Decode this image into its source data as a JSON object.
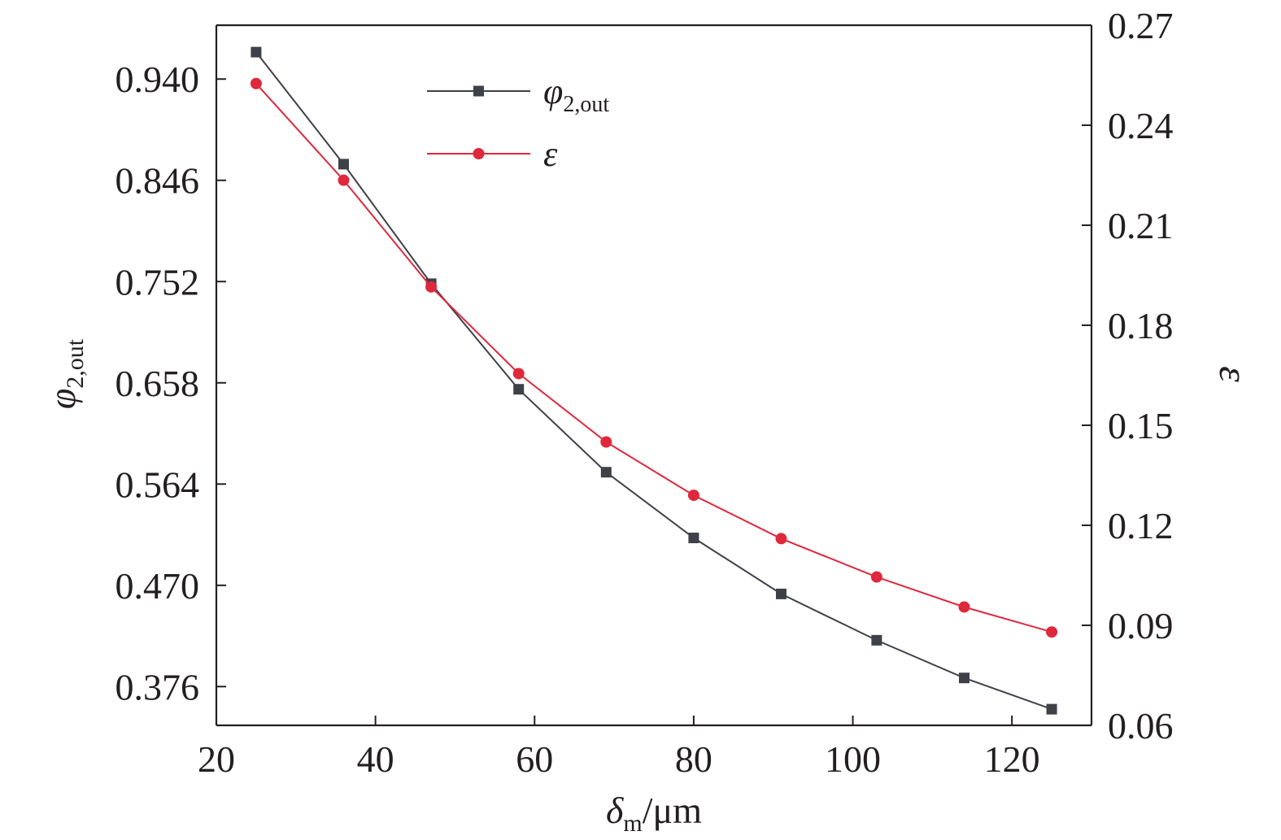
{
  "chart_data": {
    "type": "line",
    "x": [
      25,
      36,
      47,
      58,
      69,
      80,
      91,
      103,
      114,
      125
    ],
    "series": [
      {
        "name": "φ2,out",
        "axis": "left",
        "marker": "square",
        "color": "#3f4149",
        "values": [
          0.965,
          0.861,
          0.75,
          0.652,
          0.575,
          0.514,
          0.462,
          0.419,
          0.384,
          0.355
        ]
      },
      {
        "name": "ε",
        "axis": "right",
        "marker": "circle",
        "color": "#e0283c",
        "values": [
          0.2525,
          0.2235,
          0.1915,
          0.1655,
          0.145,
          0.129,
          0.116,
          0.1045,
          0.0955,
          0.088
        ]
      }
    ],
    "xlabel": {
      "main": "δ",
      "sub": "m",
      "rest": "/μm"
    },
    "ylabel_left": {
      "main": "φ",
      "sub": "2,out"
    },
    "ylabel_right": "ε",
    "xlim": [
      20,
      130
    ],
    "ylim_left": [
      0.34,
      0.99
    ],
    "ylim_right": [
      0.06,
      0.27
    ],
    "x_ticks": [
      "20",
      "40",
      "60",
      "80",
      "100",
      "120"
    ],
    "y_left_ticks": [
      "0.376",
      "0.470",
      "0.564",
      "0.658",
      "0.752",
      "0.846",
      "0.940"
    ],
    "y_right_ticks": [
      "0.06",
      "0.09",
      "0.12",
      "0.15",
      "0.18",
      "0.21",
      "0.24",
      "0.27"
    ],
    "legend": {
      "placement": "top-left",
      "items": [
        {
          "main": "φ",
          "sub": "2,out"
        },
        {
          "main": "ε",
          "sub": ""
        }
      ]
    },
    "grid": false
  }
}
